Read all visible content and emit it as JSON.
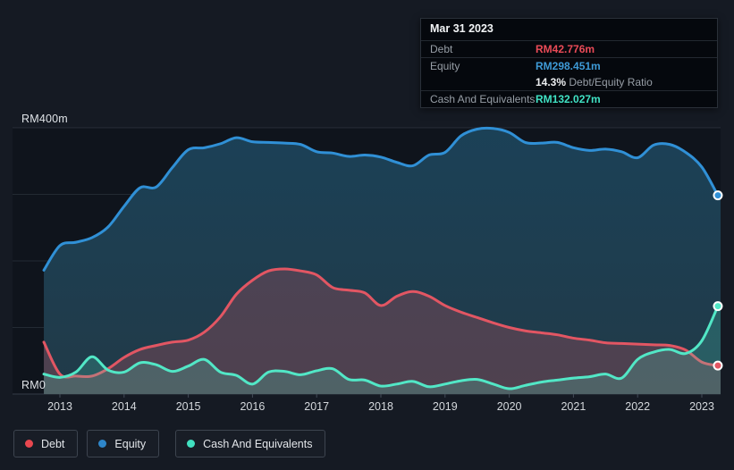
{
  "axis": {
    "y_top_label": "RM400m",
    "y_bottom_label": "RM0",
    "years": [
      "2013",
      "2014",
      "2015",
      "2016",
      "2017",
      "2018",
      "2019",
      "2020",
      "2021",
      "2022",
      "2023"
    ]
  },
  "tooltip": {
    "date": "Mar 31 2023",
    "debt_label": "Debt",
    "debt_value": "RM42.776m",
    "equity_label": "Equity",
    "equity_value": "RM298.451m",
    "ratio_bold": "14.3%",
    "ratio_text": " Debt/Equity Ratio",
    "cash_label": "Cash And Equivalents",
    "cash_value": "RM132.027m"
  },
  "legend": {
    "items": [
      {
        "label": "Debt",
        "color": "#e8474f"
      },
      {
        "label": "Equity",
        "color": "#2e86ca"
      },
      {
        "label": "Cash And Equivalents",
        "color": "#41e0c0"
      }
    ]
  },
  "colors": {
    "page_bg": "#151a23",
    "plot_bg": "#0f141c",
    "gridline": "rgba(160,175,190,0.14)",
    "axis_line": "#343c47",
    "tick": "#434c58",
    "equity_line": "#3090d6",
    "equity_fill_top": "#1b4157",
    "equity_fill_bottom": "#213a48",
    "debt_line": "#e25663",
    "debt_fill": "rgba(226,86,99,0.24)",
    "cash_line": "#52e7c6",
    "cash_fill": "rgba(82,231,198,0.20)"
  },
  "chart_data": {
    "type": "area",
    "unit": "RM millions",
    "x_start_year": 2012.75,
    "x_step_years": 0.25,
    "ylim": [
      0,
      400
    ],
    "gridlines_m": [
      0,
      100,
      200,
      300,
      400
    ],
    "legend_position": "bottom",
    "series": [
      {
        "name": "Equity",
        "values": [
          186,
          223,
          228,
          235,
          251,
          282,
          310,
          311,
          340,
          367,
          370,
          376,
          385,
          379,
          378,
          377,
          375,
          364,
          362,
          357,
          359,
          356,
          348,
          343,
          359,
          363,
          388,
          398,
          399,
          393,
          378,
          377,
          378,
          370,
          366,
          368,
          364,
          355,
          374,
          375,
          363,
          341,
          298.451
        ]
      },
      {
        "name": "Debt",
        "values": [
          78,
          30,
          27,
          27,
          38,
          55,
          67,
          73,
          78,
          81,
          93,
          116,
          150,
          171,
          185,
          188,
          185,
          179,
          160,
          156,
          152,
          133,
          147,
          154,
          147,
          133,
          123,
          115,
          107,
          100,
          95,
          92,
          89,
          84,
          81,
          77,
          76,
          75,
          74,
          73,
          66,
          48,
          42.776
        ]
      },
      {
        "name": "Cash And Equivalents",
        "values": [
          30,
          25,
          33,
          56,
          36,
          33,
          47,
          44,
          34,
          42,
          52,
          33,
          28,
          15,
          33,
          34,
          29,
          35,
          38,
          22,
          21,
          12,
          15,
          19,
          11,
          15,
          20,
          22,
          15,
          8,
          13,
          18,
          21,
          24,
          26,
          30,
          24,
          52,
          63,
          67,
          61,
          80,
          132.027
        ]
      }
    ],
    "endpoints": {
      "Debt": 42.776,
      "Equity": 298.451,
      "Cash And Equivalents": 132.027
    }
  }
}
